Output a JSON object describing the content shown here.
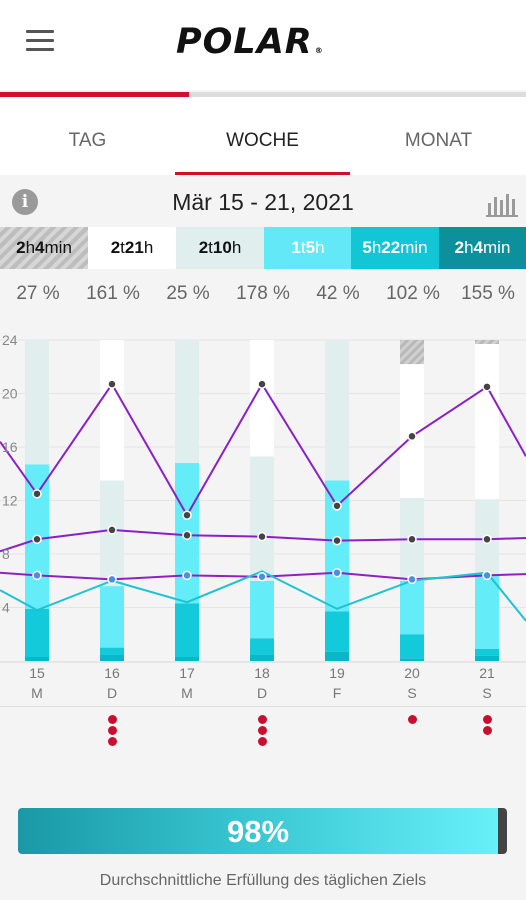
{
  "app": {
    "logo": "POLAR"
  },
  "tabs": [
    {
      "label": "TAG",
      "active": false
    },
    {
      "label": "WOCHE",
      "active": true
    },
    {
      "label": "MONAT",
      "active": false
    }
  ],
  "date_range": "Mär 15 - 21, 2021",
  "icons": {
    "menu": "hamburger-menu-icon",
    "info": "info-icon",
    "chart": "bar-chart-icon"
  },
  "zones": [
    {
      "num1": "2",
      "unit1": "h",
      "num2": "4",
      "unit2": "min",
      "bg": "#cfcfcf",
      "color": "#111",
      "hatched": true
    },
    {
      "num1": "2",
      "unit1": "t",
      "num2": "21",
      "unit2": "h",
      "bg": "#ffffff",
      "color": "#111",
      "hatched": false
    },
    {
      "num1": "2",
      "unit1": "t",
      "num2": "10",
      "unit2": "h",
      "bg": "#e0eeee",
      "color": "#111",
      "hatched": false
    },
    {
      "num1": "1",
      "unit1": "t",
      "num2": "5",
      "unit2": "h",
      "bg": "#62e8f6",
      "color": "#ffffff",
      "hatched": false
    },
    {
      "num1": "5",
      "unit1": "h",
      "num2": "22",
      "unit2": "min",
      "bg": "#12c6d6",
      "color": "#ffffff",
      "hatched": false
    },
    {
      "num1": "2",
      "unit1": "h",
      "num2": "4",
      "unit2": "min",
      "bg": "#0d8f9c",
      "color": "#ffffff",
      "hatched": false
    }
  ],
  "daily_percent": [
    "27 %",
    "161 %",
    "25 %",
    "178 %",
    "42 %",
    "102 %",
    "155 %"
  ],
  "chart_data": {
    "type": "bar",
    "y_ticks": [
      "4",
      "8",
      "12",
      "16",
      "20",
      "24"
    ],
    "ylim": [
      0,
      24
    ],
    "days": [
      {
        "date": "15",
        "weekday": "M"
      },
      {
        "date": "16",
        "weekday": "D"
      },
      {
        "date": "17",
        "weekday": "M"
      },
      {
        "date": "18",
        "weekday": "D"
      },
      {
        "date": "19",
        "weekday": "F"
      },
      {
        "date": "20",
        "weekday": "S"
      },
      {
        "date": "21",
        "weekday": "S"
      }
    ],
    "stacks": [
      [
        0,
        0.3,
        3.6,
        10.8,
        9.3,
        0
      ],
      [
        0,
        0.5,
        0.5,
        4.6,
        7.9,
        10.5
      ],
      [
        0,
        0.3,
        4.0,
        10.5,
        9.2,
        0
      ],
      [
        0,
        0.5,
        1.2,
        4.3,
        9.3,
        8.7
      ],
      [
        0,
        0.7,
        3.0,
        9.8,
        10.5,
        0
      ],
      [
        0,
        0.2,
        1.8,
        4.0,
        6.2,
        10.0,
        1.8
      ],
      [
        0,
        0.4,
        0.5,
        5.6,
        5.6,
        11.6,
        0.3
      ]
    ],
    "stack_colors": [
      "#0b7f8a",
      "#08b8c6",
      "#12cad9",
      "#64ecf8",
      "#e0eeee",
      "#ffffff"
    ],
    "series": [
      {
        "name": "",
        "color": "#8a1fc8",
        "values": [
          12.5,
          20.7,
          10.9,
          20.7,
          11.6,
          16.8,
          20.5
        ],
        "left_edge": 16.4,
        "right_edge": 15.3
      },
      {
        "name": "",
        "color": "#8a1fc8",
        "values": [
          9.1,
          9.8,
          9.4,
          9.3,
          9.0,
          9.1,
          9.1
        ],
        "left_edge": 8.2,
        "right_edge": 9.2
      },
      {
        "name": "",
        "color": "#9020c0",
        "values": [
          6.4,
          6.1,
          6.4,
          6.3,
          6.6,
          6.1,
          6.4
        ],
        "left_edge": 6.6,
        "right_edge": 6.5
      },
      {
        "name": "",
        "color": "#1cc3d2",
        "values": [
          3.8,
          6.0,
          4.4,
          6.7,
          3.9,
          6.0,
          6.6
        ],
        "left_edge": 5.3,
        "right_edge": 3.0
      }
    ]
  },
  "day_dots": [
    0,
    3,
    0,
    3,
    0,
    1,
    2
  ],
  "goal": {
    "percent_text": "98%",
    "fraction": 0.98,
    "caption": "Durchschnittliche Erfüllung des täglichen Ziels"
  }
}
